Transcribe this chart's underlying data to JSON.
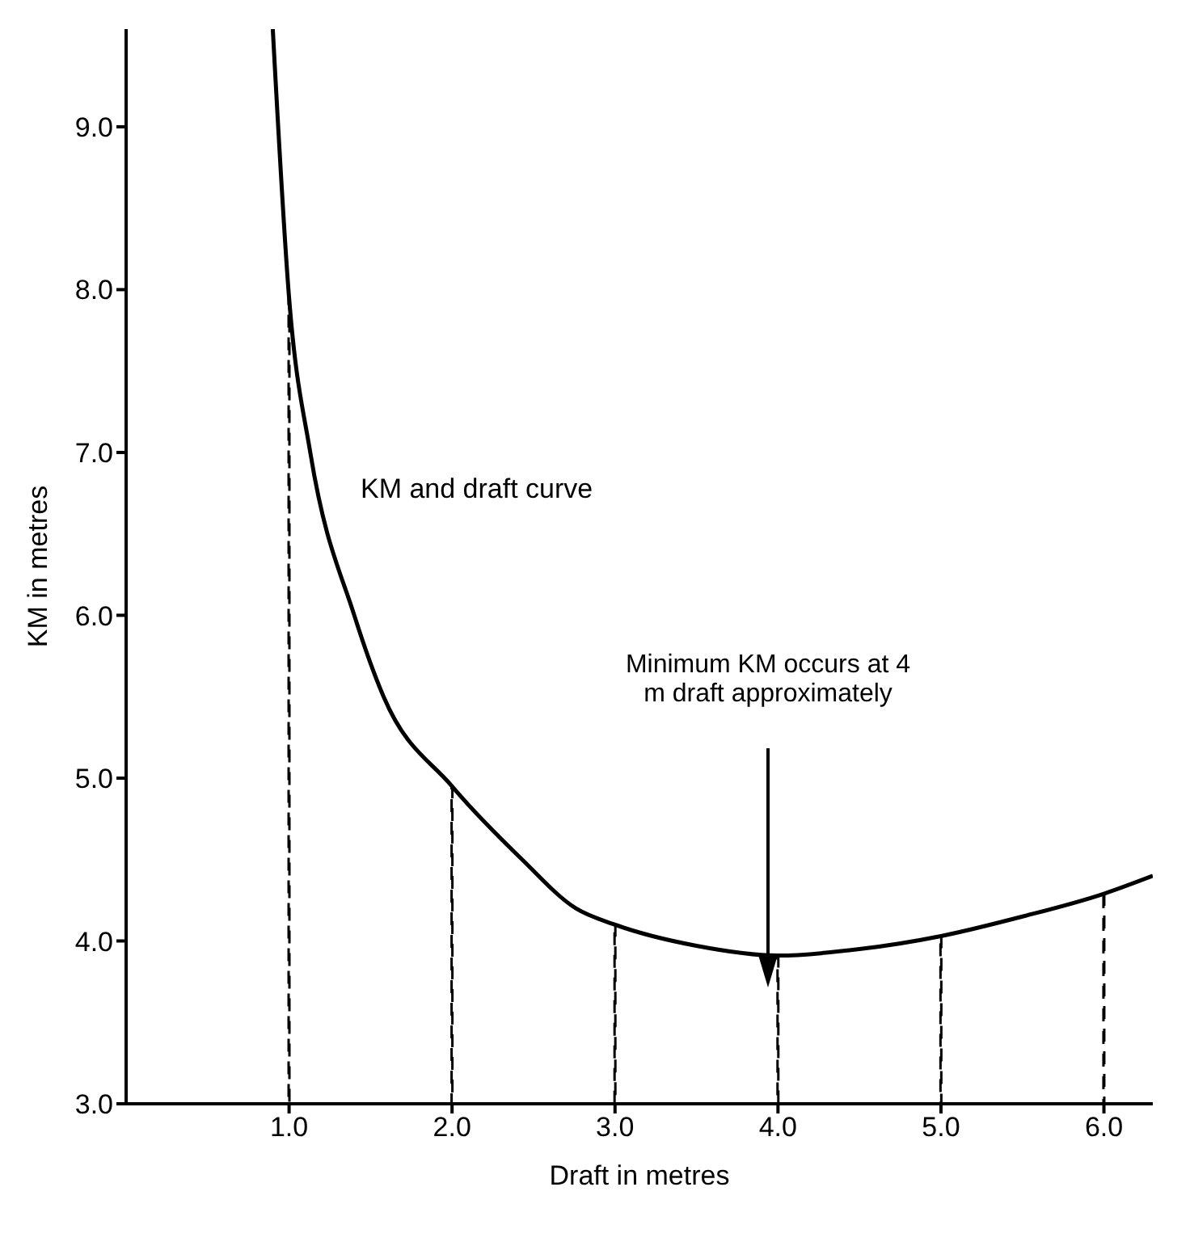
{
  "chart_data": {
    "type": "line",
    "xlabel": "Draft in metres",
    "ylabel": "KM in metres",
    "xlim": [
      0,
      6.3
    ],
    "ylim": [
      3,
      9.6
    ],
    "xticks": [
      {
        "value": 1,
        "label": "1.0"
      },
      {
        "value": 2,
        "label": "2.0"
      },
      {
        "value": 3,
        "label": "3.0"
      },
      {
        "value": 4,
        "label": "4.0"
      },
      {
        "value": 5,
        "label": "5.0"
      },
      {
        "value": 6,
        "label": "6.0"
      }
    ],
    "yticks": [
      {
        "value": 3,
        "label": "3.0"
      },
      {
        "value": 4,
        "label": "4.0"
      },
      {
        "value": 5,
        "label": "5.0"
      },
      {
        "value": 6,
        "label": "6.0"
      },
      {
        "value": 7,
        "label": "7.0"
      },
      {
        "value": 8,
        "label": "8.0"
      },
      {
        "value": 9,
        "label": "9.0"
      }
    ],
    "grid": false,
    "marker": "none",
    "series": [
      {
        "color": "#000000",
        "line_style": "solid",
        "x": [
          0.9,
          1.0,
          1.13,
          1.4,
          1.58,
          2.0,
          2.43,
          2.76,
          3.0,
          3.5,
          4.0,
          4.5,
          5.0,
          5.5,
          6.0,
          6.3
        ],
        "values": [
          9.6,
          7.95,
          7.0,
          6.0,
          5.5,
          4.95,
          4.5,
          4.2,
          4.1,
          3.97,
          3.91,
          3.95,
          4.03,
          4.15,
          4.29,
          4.4
        ]
      },
      {
        "type": "bar",
        "color": "#000000",
        "line_style": "dashed",
        "x": [
          1,
          2,
          3,
          4,
          5,
          6
        ],
        "values": [
          7.95,
          4.95,
          4.1,
          3.91,
          4.03,
          4.29
        ]
      }
    ],
    "annotations": [
      "KM and draft curve",
      "Minimum KM occurs at 4 m draft approximately"
    ]
  }
}
